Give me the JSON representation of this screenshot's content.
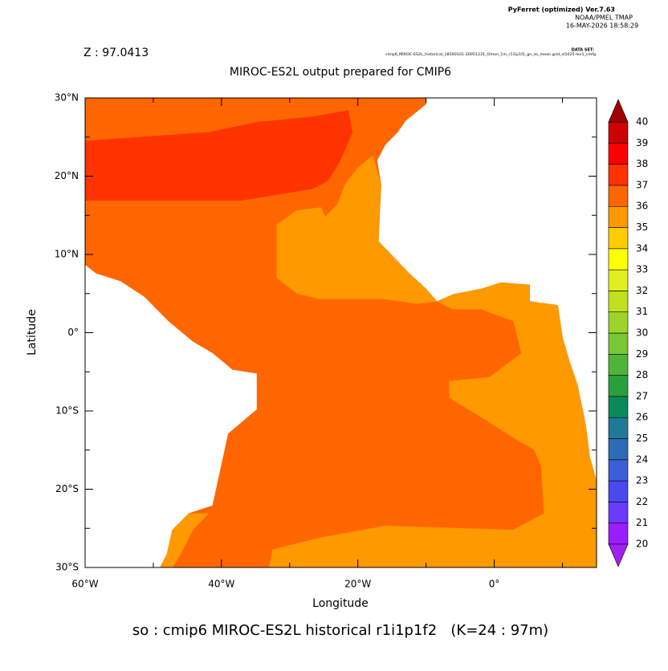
{
  "header": {
    "software": "PyFerret (optimized) Ver.7.63",
    "lab": "NOAA/PMEL TMAP",
    "date": "16-MAY-2026 18:58:29",
    "dataset_label": "DATA SET:",
    "dataset": "cmip6_MIROC-ES2L_historical_18500101-20051231_Omon_1m_r1i1p1f2_gn_so_mean.grid_sl1025-lev1_cmfg",
    "z_label": "Z : 97.0413"
  },
  "chart_data": {
    "type": "filled-contour",
    "title": "MIROC-ES2L output prepared for CMIP6",
    "x_label": "Longitude",
    "y_label": "Latitude",
    "footer": "so : cmip6 MIROC-ES2L historical r1i1p1f2   (K=24 : 97m)",
    "xlim": [
      -60,
      15
    ],
    "ylim": [
      -30,
      30
    ],
    "xticks": [
      {
        "value": -60,
        "label": "60°W"
      },
      {
        "value": -40,
        "label": "40°W"
      },
      {
        "value": -20,
        "label": "20°W"
      },
      {
        "value": 0,
        "label": "0°"
      }
    ],
    "xminor": [
      -50,
      -30,
      -10,
      10
    ],
    "yticks": [
      {
        "value": -30,
        "label": "30°S"
      },
      {
        "value": -20,
        "label": "20°S"
      },
      {
        "value": -10,
        "label": "10°S"
      },
      {
        "value": 0,
        "label": "0°"
      },
      {
        "value": 10,
        "label": "10°N"
      },
      {
        "value": 20,
        "label": "20°N"
      },
      {
        "value": 30,
        "label": "30°N"
      }
    ],
    "yminor": [
      -25,
      -15,
      -5,
      5,
      15,
      25
    ],
    "colorbar": {
      "levels": [
        20,
        21,
        22,
        23,
        24,
        25,
        26,
        27,
        28,
        29,
        30,
        31,
        32,
        33,
        34,
        35,
        36,
        37,
        38,
        39,
        40
      ],
      "colors": [
        "#9b1cff",
        "#6a3bff",
        "#4a49f0",
        "#3b5fd6",
        "#2b6cb5",
        "#1f7a96",
        "#0a8a5c",
        "#2aa03c",
        "#4fb53a",
        "#78c836",
        "#9dd42a",
        "#c0e020",
        "#e0ef20",
        "#ffff00",
        "#ffcc00",
        "#ff9900",
        "#ff6600",
        "#ff3300",
        "#ff0000",
        "#cc0000"
      ],
      "under_color": "#a020f0",
      "over_color": "#a00000"
    },
    "regions": [
      {
        "level": 36,
        "lon": [
          -60,
          -10,
          -10,
          -13,
          -14.2,
          -16,
          -17.2,
          -16.6,
          -17,
          -14.8,
          -12.5,
          -10,
          -8.4,
          -6,
          -1.9,
          1,
          5.2,
          5.2,
          9.3,
          10,
          11,
          12.2,
          13.4,
          14,
          15,
          15,
          -49,
          -48,
          -47.2,
          -44.8,
          -41.3,
          -39,
          -34.8,
          -34.8,
          -38.4,
          -41.3,
          -44.2,
          -47.8,
          -51.3,
          -54.8,
          -58.4,
          -60
        ],
        "lat": [
          30,
          30,
          29.2,
          27.1,
          25.6,
          24,
          22,
          18.9,
          11.7,
          9.7,
          7.6,
          5.6,
          4,
          4.9,
          5.6,
          6.4,
          6.1,
          4,
          3.5,
          -0.6,
          -3.6,
          -6.7,
          -11.8,
          -15.9,
          -19,
          -30,
          -30,
          -28.3,
          -25.2,
          -23.1,
          -22.1,
          -12.9,
          -9.8,
          -5.2,
          -4.7,
          -2.6,
          -1.1,
          1.5,
          4.6,
          6.6,
          7.6,
          8.7
        ]
      },
      {
        "level": 37,
        "lon": [
          -60,
          -41.9,
          -34.8,
          -26.6,
          -21.4,
          -20.8,
          -22.6,
          -24.4,
          -26.6,
          -33.6,
          -37.2,
          -60
        ],
        "lat": [
          24.5,
          25.6,
          26.9,
          27.6,
          28.4,
          25.6,
          22,
          19.4,
          18.4,
          17.4,
          16.9,
          16.9
        ]
      },
      {
        "level": 35,
        "lon": [
          -31.9,
          -29,
          -25.4,
          -24.8,
          -23,
          -21.9,
          -20.1,
          -17.8,
          -16.6,
          -17,
          -14.8,
          -12.5,
          -10,
          -8.4,
          -11.3,
          -16,
          -25.4,
          -28.9,
          -31.9
        ],
        "lat": [
          13.8,
          15.6,
          16,
          14.8,
          16.4,
          18.9,
          21,
          22.6,
          18.9,
          11.7,
          9.7,
          7.6,
          5.6,
          4,
          3.7,
          4.3,
          4.3,
          5,
          7
        ]
      },
      {
        "level": 35,
        "lon": [
          -8.4,
          -6,
          -1.9,
          1,
          5.2,
          5.2,
          9.3,
          10,
          11,
          12.2,
          13.4,
          14,
          15,
          15,
          -33,
          -32.5,
          -25.4,
          -16,
          2.8,
          7.3,
          6.9,
          5.8,
          2.8,
          -1.9,
          -6.6,
          -6.6,
          -0.7,
          4,
          2.8,
          -1.9,
          -6
        ],
        "lat": [
          4,
          4.9,
          5.6,
          6.4,
          6.1,
          4,
          3.5,
          -0.6,
          -3.6,
          -6.7,
          -11.8,
          -15.9,
          -19,
          -30,
          -30,
          -27.7,
          -26.2,
          -24.7,
          -25.2,
          -23.1,
          -17,
          -14.9,
          -13.4,
          -10.8,
          -8.3,
          -6.2,
          -5.7,
          -2.6,
          1.5,
          3,
          3
        ]
      },
      {
        "level": 35,
        "lon": [
          -49,
          -48,
          -47.2,
          -44.8,
          -41.9,
          -44.2,
          -46,
          -47.2
        ],
        "lat": [
          -30,
          -28.3,
          -25.2,
          -23.1,
          -23.1,
          -25.2,
          -28.3,
          -30
        ]
      }
    ]
  }
}
